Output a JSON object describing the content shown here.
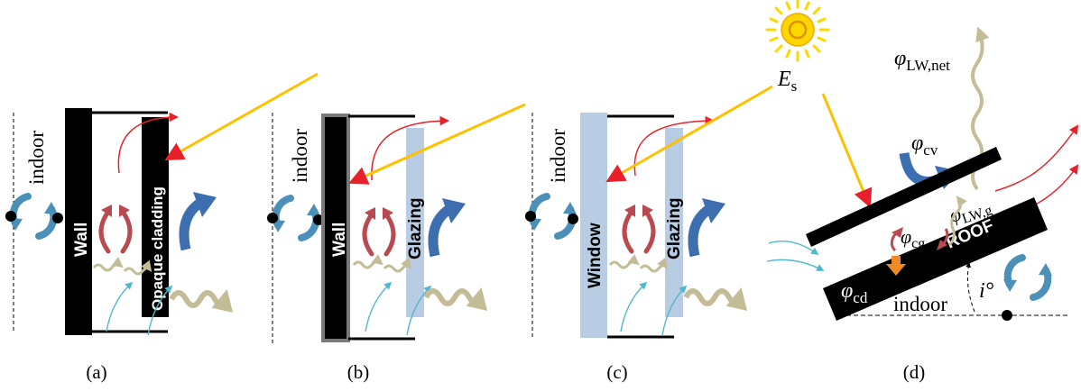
{
  "colors": {
    "solid": "#000000",
    "glass": "#b8cce4",
    "sun_ray": "#ffc000",
    "sun": "#ffd700",
    "convection_blue": "#4a90b8",
    "cavity_red": "#b84a50",
    "convective_arrow": "#3d6fb0",
    "heat_flow_red": "#e8202a",
    "long_wave": "#c4bc96",
    "air_inflow": "#4db8d0",
    "conduction": "#f08a24"
  },
  "panels": {
    "a": {
      "caption": "(a)",
      "indoor_label": "indoor",
      "wall_label": "Wall",
      "cladding_label": "Opaque cladding"
    },
    "b": {
      "caption": "(b)",
      "indoor_label": "indoor",
      "wall_label": "Wall",
      "glazing_label": "Glazing"
    },
    "c": {
      "caption": "(c)",
      "indoor_label": "indoor",
      "window_label": "Window",
      "glazing_label": "Glazing"
    },
    "d": {
      "caption": "(d)",
      "roof_label": "ROOF",
      "indoor_label": "indoor",
      "solar_symbol": "E",
      "solar_sub": "s",
      "lw_net_symbol": "φ",
      "lw_net_sub": "LW,net",
      "cv_symbol": "φ",
      "cv_sub": "cv",
      "lw_g_symbol": "φ",
      "lw_g_sub": "LW,g",
      "cg_symbol": "φ",
      "cg_sub": "cg",
      "cd_symbol": "φ",
      "cd_sub": "cd",
      "angle_symbol": "i°"
    }
  }
}
